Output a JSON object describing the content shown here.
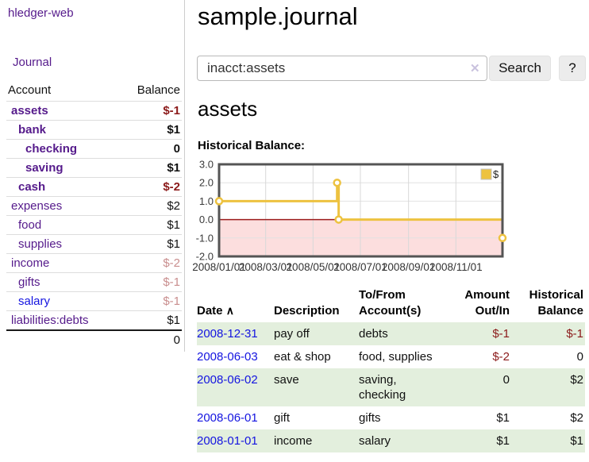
{
  "colors": {
    "link_purple": "#551a8b",
    "link_blue": "#1414e0",
    "negative": "#8b1a1a",
    "negative_faded": "#c98e8e",
    "row_stripe_green": "#e3efdd",
    "chart_series_gold": "#edc240",
    "chart_negative_fill": "#fcdede",
    "chart_zero_line": "#9c1c1c"
  },
  "sidebar": {
    "app_title": "hledger-web",
    "nav_journal": "Journal",
    "accounts_table": {
      "headers": {
        "account": "Account",
        "balance": "Balance"
      },
      "rows": [
        {
          "name": "assets",
          "balance": "$-1",
          "level": 1,
          "bold": true,
          "balance_style": "neg"
        },
        {
          "name": "bank",
          "balance": "$1",
          "level": 2,
          "bold": true,
          "balance_style": "pos"
        },
        {
          "name": "checking",
          "balance": "0",
          "level": 3,
          "bold": true,
          "balance_style": "pos"
        },
        {
          "name": "saving",
          "balance": "$1",
          "level": 3,
          "bold": true,
          "balance_style": "pos"
        },
        {
          "name": "cash",
          "balance": "$-2",
          "level": 2,
          "bold": true,
          "balance_style": "neg"
        },
        {
          "name": "expenses",
          "balance": "$2",
          "level": 1,
          "bold": false,
          "balance_style": "pos"
        },
        {
          "name": "food",
          "balance": "$1",
          "level": 2,
          "bold": false,
          "balance_style": "pos"
        },
        {
          "name": "supplies",
          "balance": "$1",
          "level": 2,
          "bold": false,
          "balance_style": "pos"
        },
        {
          "name": "income",
          "balance": "$-2",
          "level": 1,
          "bold": false,
          "balance_style": "neg-faded"
        },
        {
          "name": "gifts",
          "balance": "$-1",
          "level": 2,
          "bold": false,
          "balance_style": "neg-faded"
        },
        {
          "name": "salary",
          "balance": "$-1",
          "level": 2,
          "bold": false,
          "balance_style": "neg-faded",
          "link_color": "blue"
        },
        {
          "name": "liabilities:debts",
          "balance": "$1",
          "level": 1,
          "bold": false,
          "balance_style": "pos"
        }
      ],
      "total": "0"
    }
  },
  "main": {
    "page_title": "sample.journal",
    "search": {
      "value": "inacct:assets",
      "clear_icon": "✕",
      "button_label": "Search",
      "help_label": "?"
    },
    "account_heading": "assets",
    "chart_label": "Historical Balance:"
  },
  "chart_data": {
    "type": "line",
    "step": true,
    "title": "Historical Balance",
    "series": [
      {
        "name": "$",
        "color": "#edc240",
        "points": [
          [
            "2008-01-01",
            1
          ],
          [
            "2008-06-01",
            2
          ],
          [
            "2008-06-03",
            0
          ],
          [
            "2008-12-31",
            -1
          ]
        ]
      }
    ],
    "x_range": [
      "2008-01-01",
      "2008-12-31"
    ],
    "ylim": [
      -2,
      3
    ],
    "yticks": [
      3,
      2,
      1,
      0,
      -1,
      -2
    ],
    "ytick_labels": [
      "3.0",
      "2.0",
      "1.0",
      "0.0",
      "-1.0",
      "-2.0"
    ],
    "xticks": [
      "2008/01/01",
      "2008/03/01",
      "2008/05/01",
      "2008/07/01",
      "2008/09/01",
      "2008/11/01"
    ],
    "legend": {
      "label": "$",
      "position": "top-right"
    },
    "grid": true,
    "negative_fill": "#fcdede",
    "zero_line_color": "#9c1c1c",
    "border_color": "#545454"
  },
  "transactions_table": {
    "headers": {
      "date": "Date",
      "description": "Description",
      "tofrom": "To/From Account(s)",
      "amount": "Amount Out/In",
      "balance": "Historical Balance"
    },
    "sort_icon": "∧",
    "rows": [
      {
        "date": "2008-12-31",
        "description": "pay off",
        "accounts": "debts",
        "amount": "$-1",
        "balance": "$-1"
      },
      {
        "date": "2008-06-03",
        "description": "eat & shop",
        "accounts": "food, supplies",
        "amount": "$-2",
        "balance": "0"
      },
      {
        "date": "2008-06-02",
        "description": "save",
        "accounts": "saving, checking",
        "amount": "0",
        "balance": "$2"
      },
      {
        "date": "2008-06-01",
        "description": "gift",
        "accounts": "gifts",
        "amount": "$1",
        "balance": "$2"
      },
      {
        "date": "2008-01-01",
        "description": "income",
        "accounts": "salary",
        "amount": "$1",
        "balance": "$1"
      }
    ]
  }
}
